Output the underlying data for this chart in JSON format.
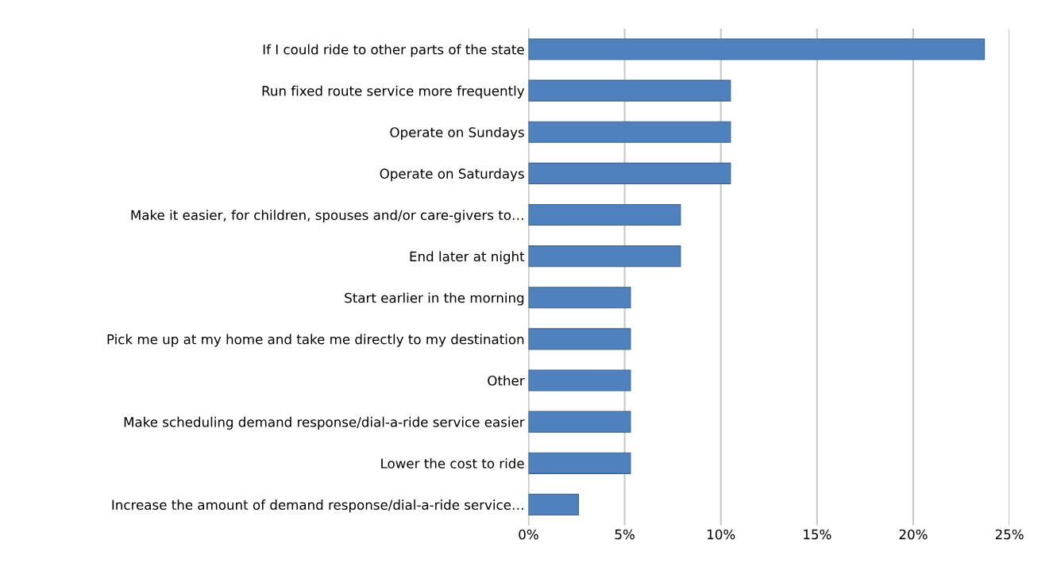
{
  "chart_data": {
    "type": "bar",
    "orientation": "horizontal",
    "categories": [
      "If I could ride to other parts of the state",
      "Run fixed route service more frequently",
      "Operate on Sundays",
      "Operate on Saturdays",
      "Make it easier, for children, spouses and/or care-givers to…",
      "End later at night",
      "Start earlier in the morning",
      "Pick me up at my home and take me directly to my destination",
      "Other",
      "Make scheduling demand response/dial-a-ride service easier",
      "Lower the cost to ride",
      "Increase the amount of demand response/dial-a-ride service…"
    ],
    "values": [
      23.7,
      10.5,
      10.5,
      10.5,
      7.9,
      7.9,
      5.3,
      5.3,
      5.3,
      5.3,
      5.3,
      2.6
    ],
    "color": "#4f81bd",
    "xlim": [
      0,
      25
    ],
    "xticks": [
      {
        "value": 0,
        "label": "0%"
      },
      {
        "value": 5,
        "label": "5%"
      },
      {
        "value": 10,
        "label": "10%"
      },
      {
        "value": 15,
        "label": "15%"
      },
      {
        "value": 20,
        "label": "20%"
      },
      {
        "value": 25,
        "label": "25%"
      }
    ],
    "grid": "x",
    "legend": false
  }
}
